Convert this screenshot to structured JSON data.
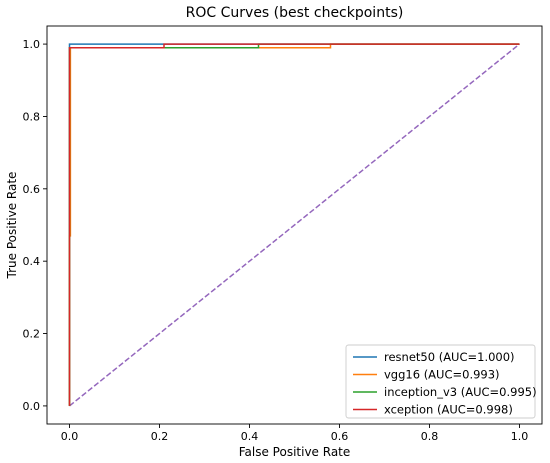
{
  "chart_data": {
    "type": "line",
    "title": "ROC Curves (best checkpoints)",
    "xlabel": "False Positive Rate",
    "ylabel": "True Positive Rate",
    "xlim": [
      -0.05,
      1.05
    ],
    "ylim": [
      -0.05,
      1.05
    ],
    "xticks": [
      "0.0",
      "0.2",
      "0.4",
      "0.6",
      "0.8",
      "1.0"
    ],
    "yticks": [
      "0.0",
      "0.2",
      "0.4",
      "0.6",
      "0.8",
      "1.0"
    ],
    "grid": false,
    "legend_position": "bottom-right",
    "series": [
      {
        "name": "resnet50 (AUC=1.000)",
        "color": "#1f77b4",
        "x": [
          0,
          0,
          0.21,
          0.21,
          1
        ],
        "y": [
          0,
          1,
          1,
          1,
          1
        ]
      },
      {
        "name": "vgg16 (AUC=0.993)",
        "color": "#ff7f0e",
        "x": [
          0,
          0,
          0.002,
          0.002,
          0.004,
          0.004,
          0.42,
          0.42,
          0.58,
          0.58,
          1
        ],
        "y": [
          0,
          0.47,
          0.47,
          0.99,
          0.99,
          0.99,
          0.99,
          0.99,
          0.99,
          1,
          1
        ]
      },
      {
        "name": "inception_v3 (AUC=0.995)",
        "color": "#2ca02c",
        "x": [
          0,
          0,
          0.21,
          0.21,
          0.42,
          0.42,
          1
        ],
        "y": [
          0,
          0.99,
          0.99,
          0.99,
          0.99,
          1,
          1
        ]
      },
      {
        "name": "xception (AUC=0.998)",
        "color": "#d62728",
        "x": [
          0,
          0,
          0.21,
          0.21,
          1
        ],
        "y": [
          0,
          0.99,
          0.99,
          1,
          1
        ]
      }
    ],
    "reference_line": {
      "color": "#9467bd",
      "x": [
        0,
        1
      ],
      "y": [
        0,
        1
      ]
    }
  }
}
